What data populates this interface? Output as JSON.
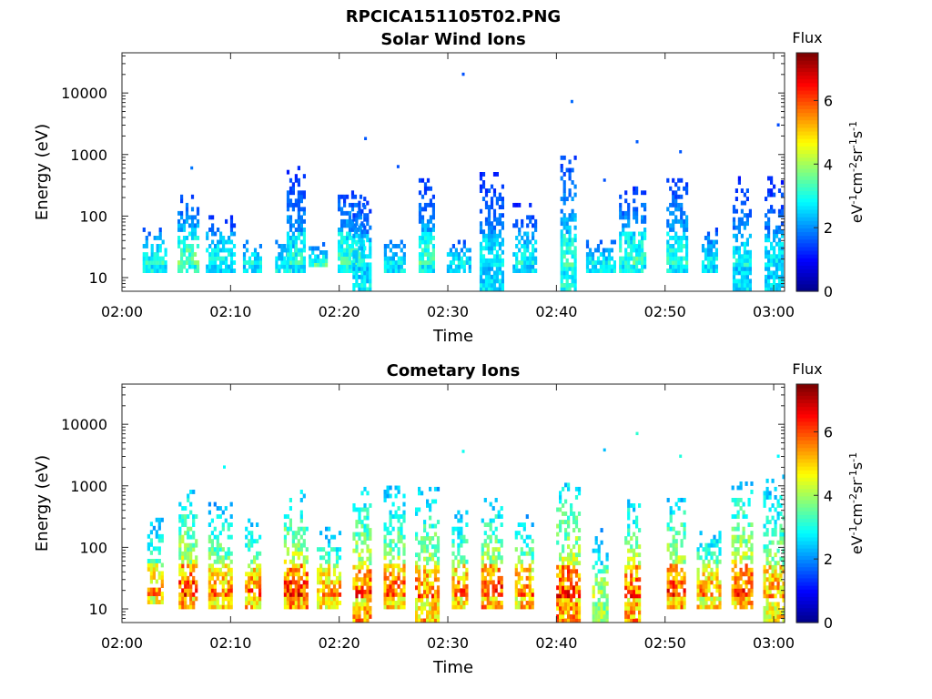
{
  "figure_title": "RPCICA151105T02.PNG",
  "colors": {
    "colormap": [
      "#00008f",
      "#0000ff",
      "#0080ff",
      "#00ffff",
      "#80ff80",
      "#ffff00",
      "#ff8000",
      "#ff0000",
      "#800000"
    ]
  },
  "chart_data": [
    {
      "type": "heatmap",
      "title": "Solar Wind Ions",
      "xlabel": "Time",
      "ylabel": "Energy (eV)",
      "xlim": [
        "02:00",
        "03:01"
      ],
      "ylim": [
        6,
        45000
      ],
      "yscale": "log",
      "xticks": [
        "02:00",
        "02:10",
        "02:20",
        "02:30",
        "02:40",
        "02:50",
        "03:00"
      ],
      "yticks": [
        "10",
        "100",
        "1000",
        "10000"
      ],
      "colorbar": {
        "label": "Flux",
        "units": "eV",
        "ticks": [
          "0",
          "2",
          "4",
          "6"
        ],
        "range": [
          0,
          7.5
        ]
      },
      "bursts": [
        {
          "t": "02:03",
          "emin": 12,
          "emax": 60,
          "peak": 3.6,
          "ext": 0
        },
        {
          "t": "02:06",
          "emin": 12,
          "emax": 210,
          "peak": 4.0,
          "ext": 600
        },
        {
          "t": "02:09",
          "emin": 12,
          "emax": 95,
          "peak": 3.4,
          "ext": 0
        },
        {
          "t": "02:12",
          "emin": 12,
          "emax": 40,
          "peak": 3.5,
          "ext": 0
        },
        {
          "t": "02:15",
          "emin": 12,
          "emax": 40,
          "peak": 3.5,
          "ext": 0
        },
        {
          "t": "02:16",
          "emin": 12,
          "emax": 600,
          "peak": 3.4,
          "ext": 0
        },
        {
          "t": "02:18",
          "emin": 15,
          "emax": 35,
          "peak": 3.5,
          "ext": 0
        },
        {
          "t": "02:21",
          "emin": 12,
          "emax": 250,
          "peak": 3.7,
          "ext": 0
        },
        {
          "t": "02:22",
          "emin": 6,
          "emax": 230,
          "peak": 3.5,
          "ext": 1800
        },
        {
          "t": "02:25",
          "emin": 12,
          "emax": 40,
          "peak": 3.4,
          "ext": 630
        },
        {
          "t": "02:28",
          "emin": 12,
          "emax": 400,
          "peak": 3.6,
          "ext": 0
        },
        {
          "t": "02:31",
          "emin": 12,
          "emax": 40,
          "peak": 3.4,
          "ext": 20000
        },
        {
          "t": "02:34",
          "emin": 6,
          "emax": 460,
          "peak": 3.4,
          "ext": 0
        },
        {
          "t": "02:37",
          "emin": 12,
          "emax": 150,
          "peak": 3.3,
          "ext": 0
        },
        {
          "t": "02:41",
          "emin": 6,
          "emax": 1000,
          "peak": 3.8,
          "ext": 7200
        },
        {
          "t": "02:44",
          "emin": 12,
          "emax": 40,
          "peak": 3.4,
          "ext": 380
        },
        {
          "t": "02:47",
          "emin": 12,
          "emax": 300,
          "peak": 3.6,
          "ext": 1600
        },
        {
          "t": "02:51",
          "emin": 12,
          "emax": 450,
          "peak": 3.5,
          "ext": 1100
        },
        {
          "t": "02:54",
          "emin": 12,
          "emax": 60,
          "peak": 3.4,
          "ext": 0
        },
        {
          "t": "02:57",
          "emin": 6,
          "emax": 430,
          "peak": 3.4,
          "ext": 0
        },
        {
          "t": "03:00",
          "emin": 6,
          "emax": 400,
          "peak": 3.3,
          "ext": 3000
        }
      ]
    },
    {
      "type": "heatmap",
      "title": "Cometary Ions",
      "xlabel": "Time",
      "ylabel": "Energy (eV)",
      "xlim": [
        "02:00",
        "03:01"
      ],
      "ylim": [
        6,
        45000
      ],
      "yscale": "log",
      "xticks": [
        "02:00",
        "02:10",
        "02:20",
        "02:30",
        "02:40",
        "02:50",
        "03:00"
      ],
      "yticks": [
        "10",
        "100",
        "1000",
        "10000"
      ],
      "colorbar": {
        "label": "Flux",
        "units": "eV",
        "ticks": [
          "0",
          "2",
          "4",
          "6"
        ],
        "range": [
          0,
          7.5
        ]
      },
      "bursts": [
        {
          "t": "02:03",
          "emin": 12,
          "emax": 280,
          "peak": 6.0,
          "ext": 0
        },
        {
          "t": "02:06",
          "emin": 10,
          "emax": 950,
          "peak": 6.8,
          "ext": 0
        },
        {
          "t": "02:09",
          "emin": 10,
          "emax": 500,
          "peak": 6.3,
          "ext": 2000
        },
        {
          "t": "02:12",
          "emin": 10,
          "emax": 300,
          "peak": 6.5,
          "ext": 0
        },
        {
          "t": "02:16",
          "emin": 10,
          "emax": 800,
          "peak": 6.9,
          "ext": 0
        },
        {
          "t": "02:19",
          "emin": 10,
          "emax": 200,
          "peak": 6.3,
          "ext": 0
        },
        {
          "t": "02:22",
          "emin": 6,
          "emax": 900,
          "peak": 6.9,
          "ext": 0
        },
        {
          "t": "02:25",
          "emin": 10,
          "emax": 950,
          "peak": 6.4,
          "ext": 0
        },
        {
          "t": "02:28",
          "emin": 6,
          "emax": 900,
          "peak": 6.7,
          "ext": 0
        },
        {
          "t": "02:31",
          "emin": 10,
          "emax": 350,
          "peak": 6.5,
          "ext": 3600
        },
        {
          "t": "02:34",
          "emin": 10,
          "emax": 550,
          "peak": 6.9,
          "ext": 0
        },
        {
          "t": "02:37",
          "emin": 10,
          "emax": 320,
          "peak": 6.5,
          "ext": 0
        },
        {
          "t": "02:41",
          "emin": 6,
          "emax": 1100,
          "peak": 7.2,
          "ext": 0
        },
        {
          "t": "02:44",
          "emin": 6,
          "emax": 200,
          "peak": 5.2,
          "ext": 3800
        },
        {
          "t": "02:47",
          "emin": 6,
          "emax": 600,
          "peak": 7.0,
          "ext": 7000
        },
        {
          "t": "02:51",
          "emin": 10,
          "emax": 700,
          "peak": 6.8,
          "ext": 3000
        },
        {
          "t": "02:54",
          "emin": 10,
          "emax": 200,
          "peak": 6.3,
          "ext": 0
        },
        {
          "t": "02:57",
          "emin": 10,
          "emax": 1100,
          "peak": 6.8,
          "ext": 0
        },
        {
          "t": "03:00",
          "emin": 6,
          "emax": 1500,
          "peak": 6.2,
          "ext": 3000
        }
      ]
    }
  ]
}
